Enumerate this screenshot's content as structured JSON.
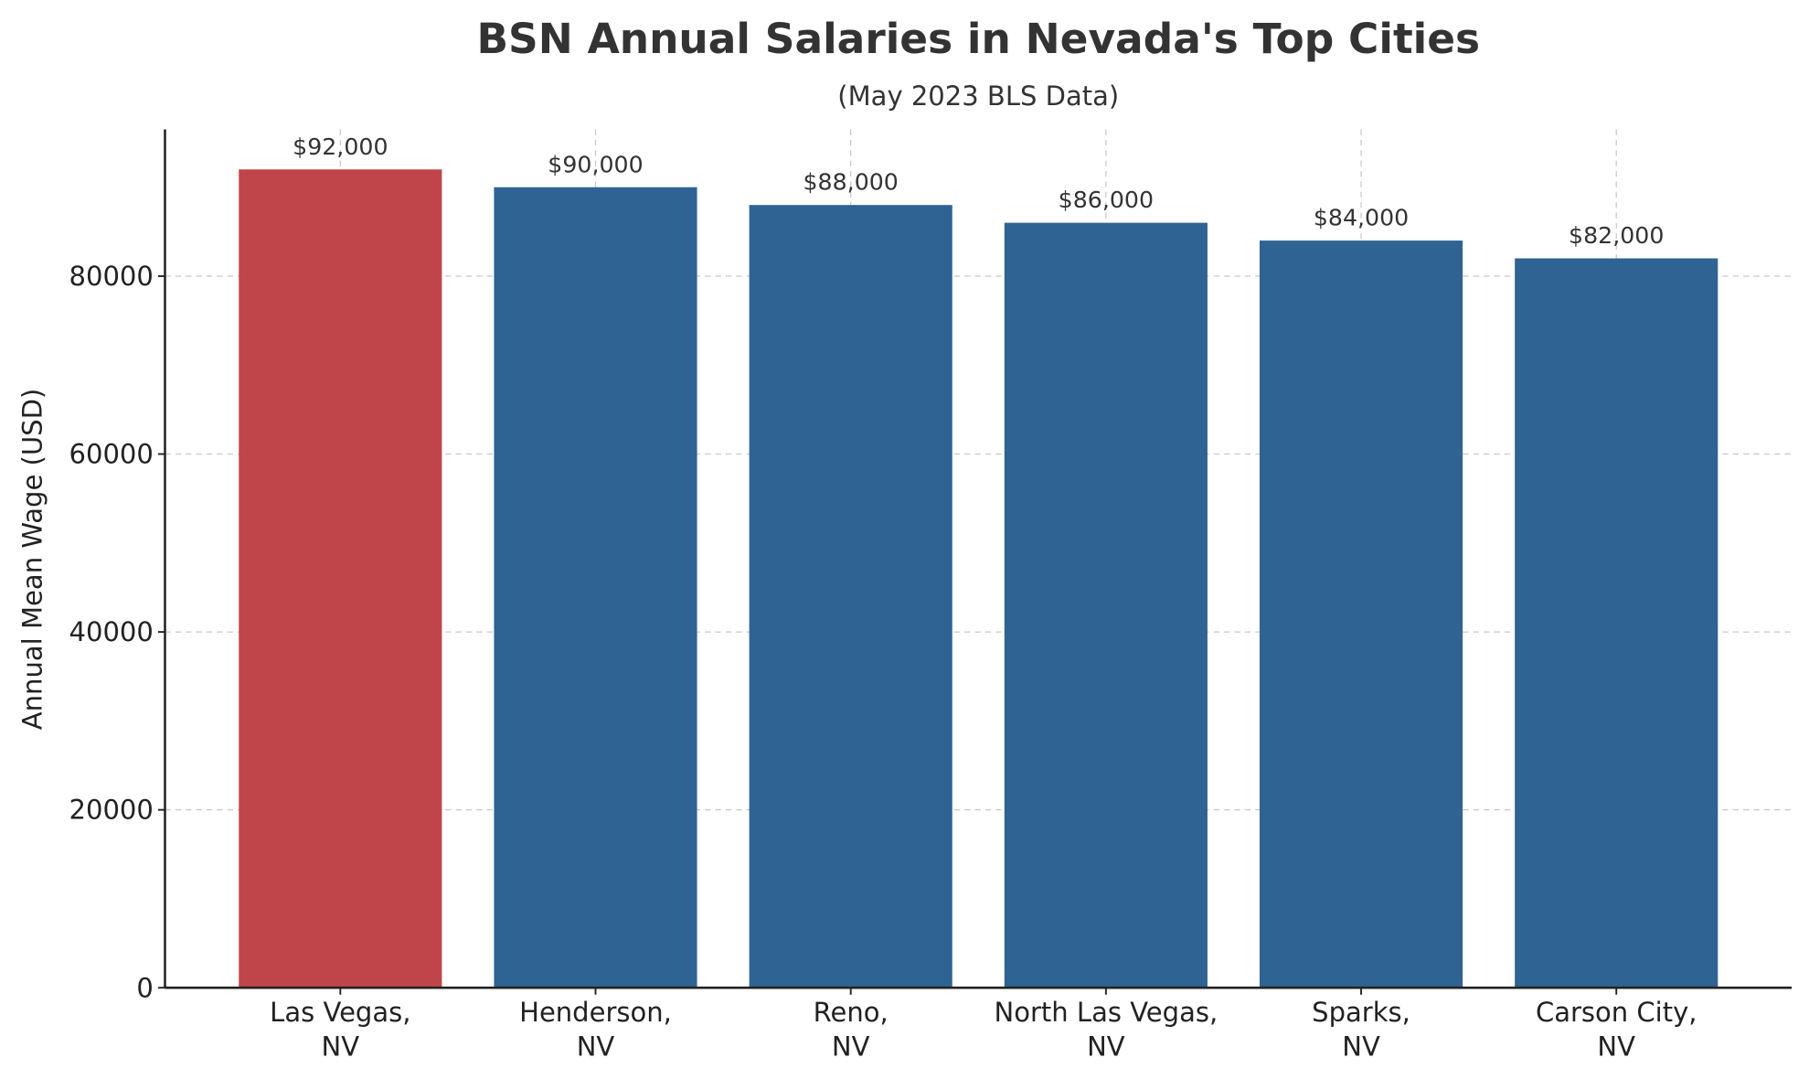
{
  "chart_data": {
    "type": "bar",
    "title": "BSN Annual Salaries in Nevada's Top Cities",
    "subtitle": "(May 2023 BLS Data)",
    "xlabel": "",
    "ylabel": "Annual Mean Wage (USD)",
    "categories": [
      [
        "Las Vegas,",
        "NV"
      ],
      [
        "Henderson,",
        "NV"
      ],
      [
        "Reno,",
        "NV"
      ],
      [
        "North Las Vegas,",
        "NV"
      ],
      [
        "Sparks,",
        "NV"
      ],
      [
        "Carson City,",
        "NV"
      ]
    ],
    "values": [
      92000,
      90000,
      88000,
      86000,
      84000,
      82000
    ],
    "data_labels": [
      "$92,000",
      "$90,000",
      "$88,000",
      "$86,000",
      "$84,000",
      "$82,000"
    ],
    "bar_colors": [
      "#c0454a",
      "#2f6393",
      "#2f6393",
      "#2f6393",
      "#2f6393",
      "#2f6393"
    ],
    "ylim": [
      0,
      96500
    ],
    "yticks": [
      0,
      20000,
      40000,
      60000,
      80000
    ],
    "ytick_labels": [
      "0",
      "20000",
      "40000",
      "60000",
      "80000"
    ],
    "grid": true,
    "legend": "none"
  }
}
